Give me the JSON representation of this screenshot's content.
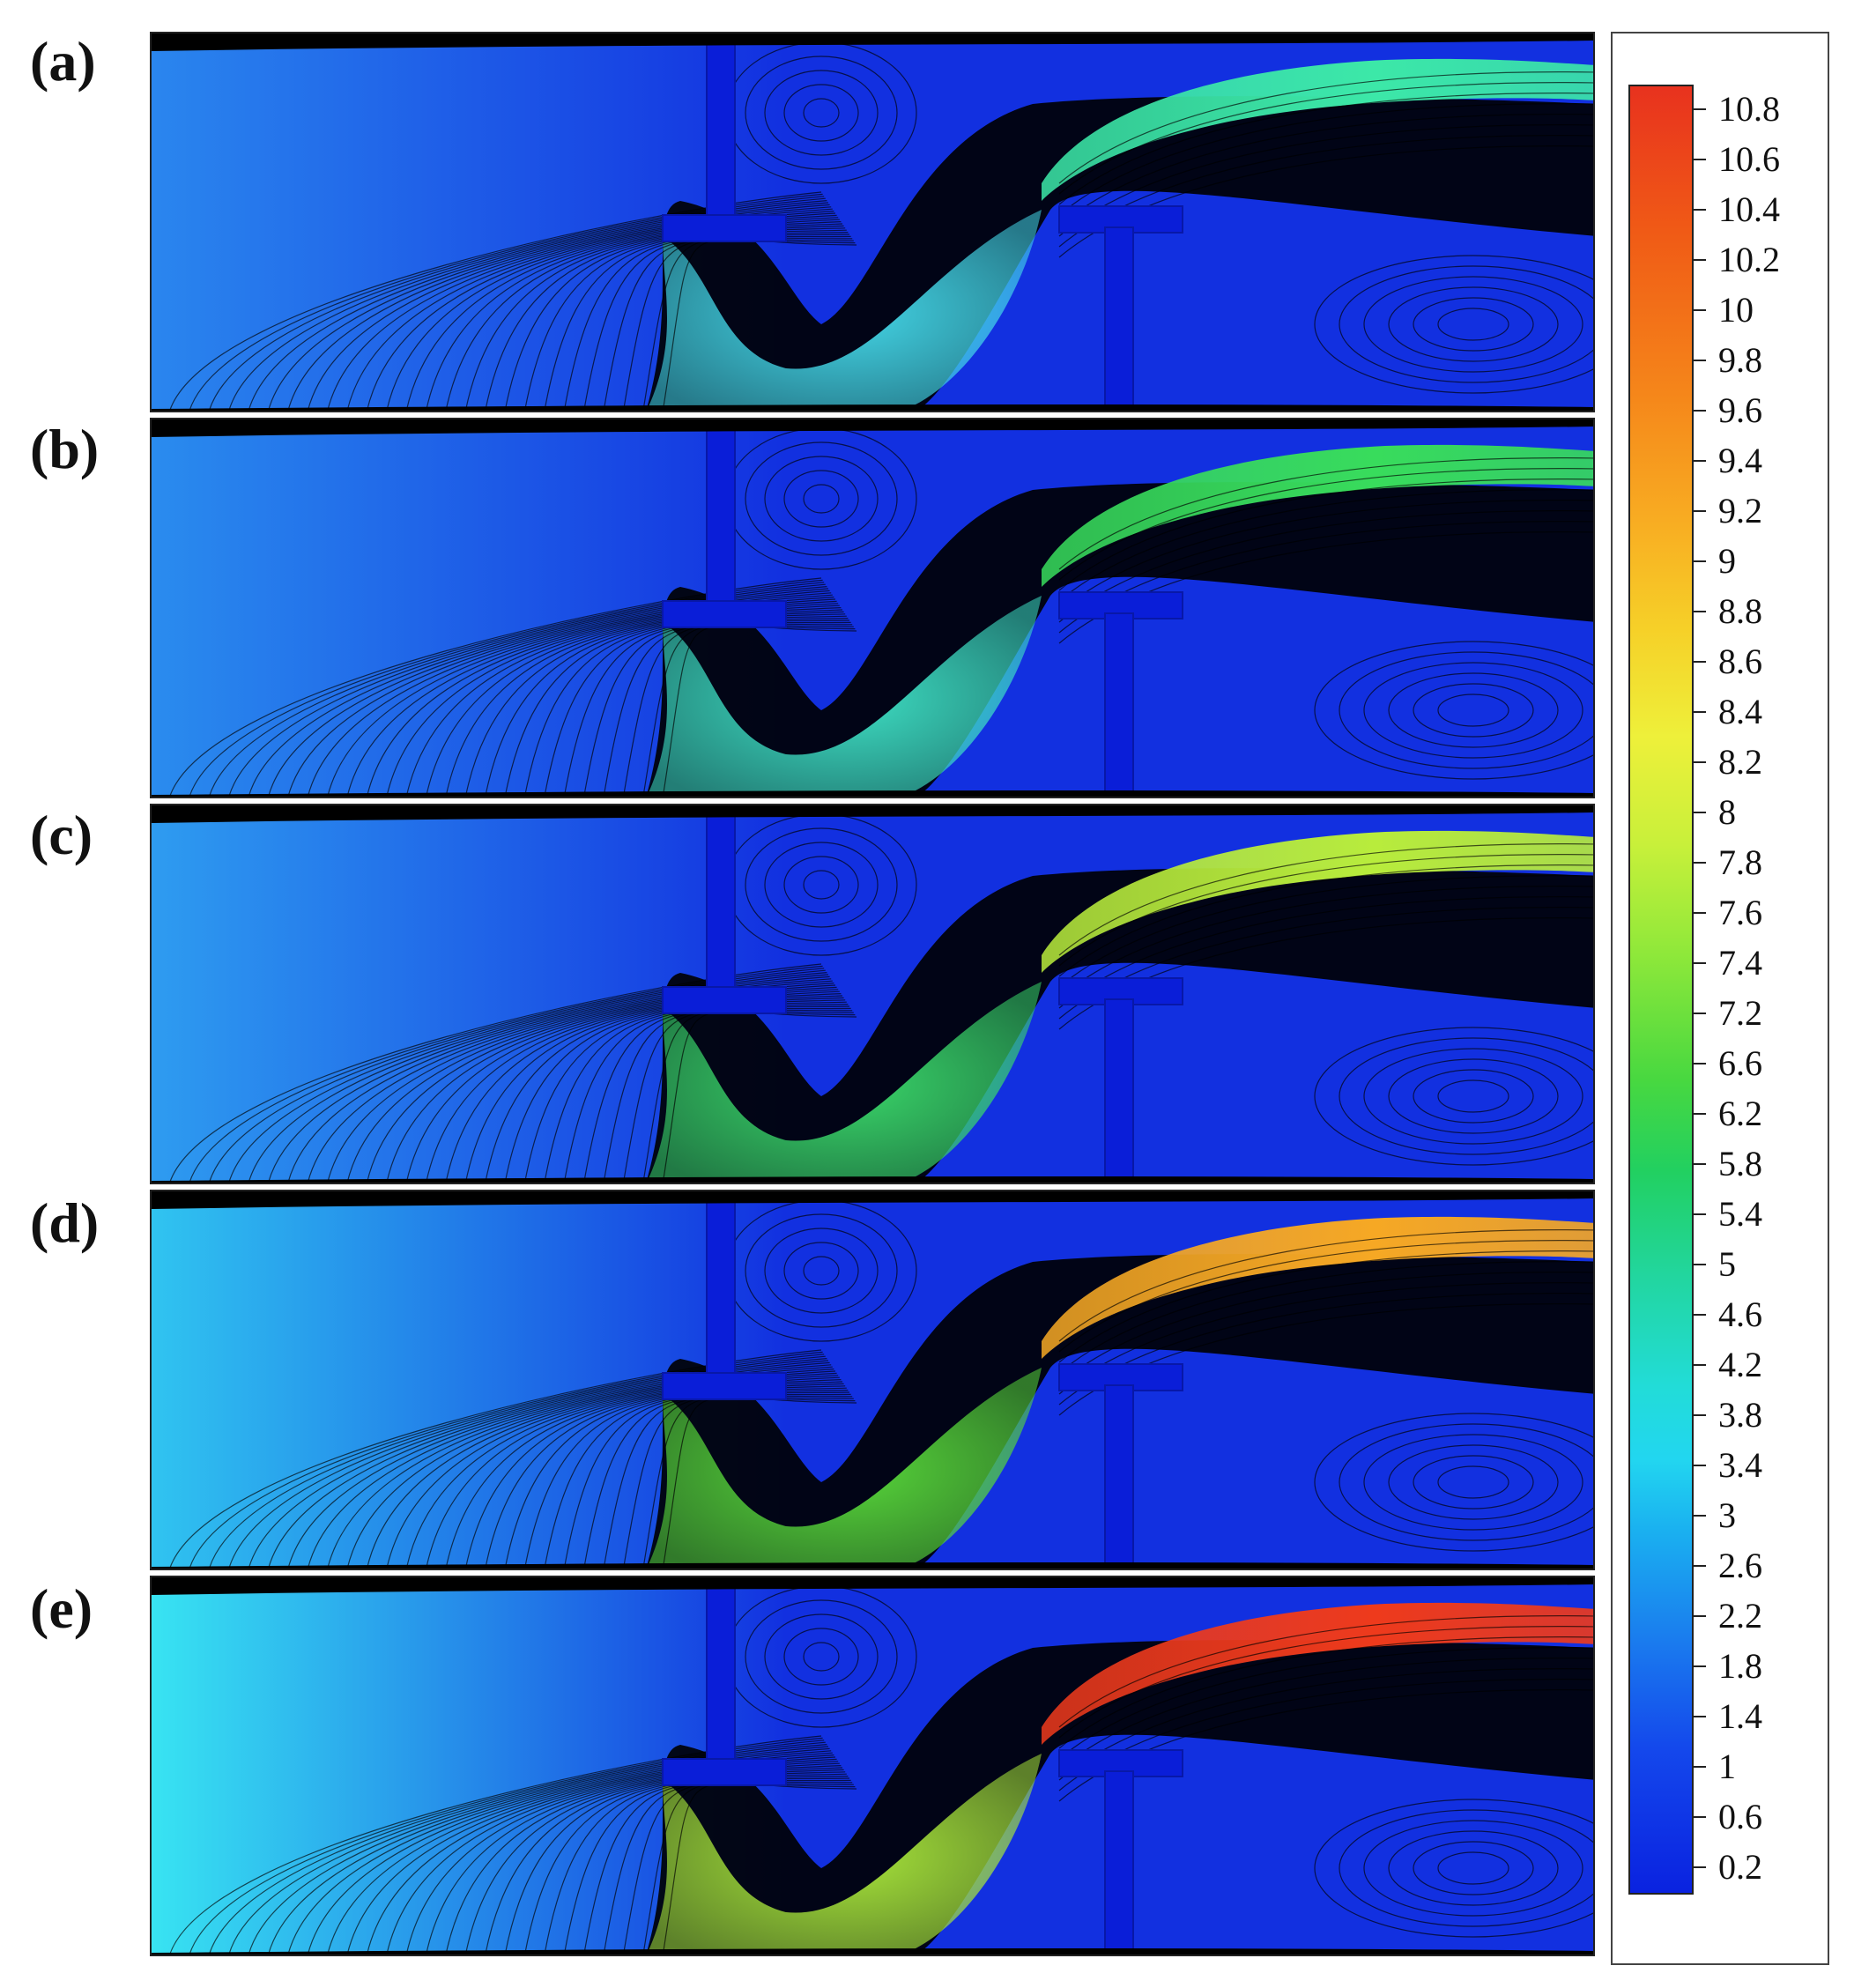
{
  "panels": [
    {
      "label": "(a)",
      "jet_color": "#3ce8a8",
      "lower_color": "#44d8e8",
      "inlet_color": "#2a86ee"
    },
    {
      "label": "(b)",
      "jet_color": "#38dc5c",
      "lower_color": "#3ee0c4",
      "inlet_color": "#2a8cee"
    },
    {
      "label": "(c)",
      "jet_color": "#b8ec3c",
      "lower_color": "#3ad86a",
      "inlet_color": "#2e9cf0"
    },
    {
      "label": "(d)",
      "jet_color": "#f6a824",
      "lower_color": "#58d83a",
      "inlet_color": "#30c4f0"
    },
    {
      "label": "(e)",
      "jet_color": "#ee3a1c",
      "lower_color": "#a8e63a",
      "inlet_color": "#38e4f2"
    }
  ],
  "colorbar": {
    "labels": [
      "10.8",
      "10.6",
      "10.4",
      "10.2",
      "10",
      "9.8",
      "9.6",
      "9.4",
      "9.2",
      "9",
      "8.8",
      "8.6",
      "8.4",
      "8.2",
      "8",
      "7.8",
      "7.6",
      "7.4",
      "7.2",
      "6.6",
      "6.2",
      "5.8",
      "5.4",
      "5",
      "4.6",
      "4.2",
      "3.8",
      "3.4",
      "3",
      "2.6",
      "2.2",
      "1.8",
      "1.4",
      "1",
      "0.6",
      "0.2"
    ]
  },
  "colors": {
    "background": "#1230e0",
    "solid": "#0a1ed8",
    "contour_line": "#000000"
  }
}
